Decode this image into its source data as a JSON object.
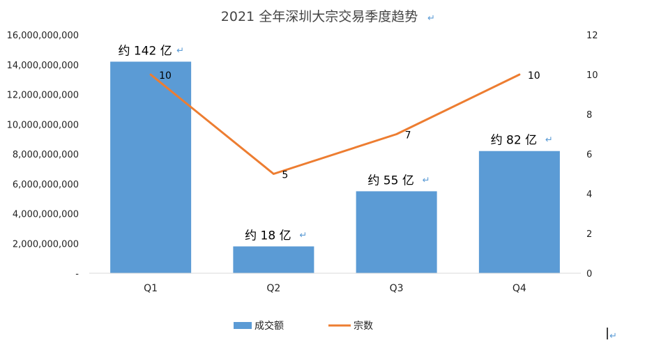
{
  "chart_data": {
    "type": "bar+line",
    "title": "2021 全年深圳大宗交易季度趋势",
    "categories": [
      "Q1",
      "Q2",
      "Q3",
      "Q4"
    ],
    "series": [
      {
        "name": "成交额",
        "type": "bar",
        "axis": "left",
        "color": "#5b9bd5",
        "values": [
          14200000000,
          1800000000,
          5500000000,
          8200000000
        ],
        "labels": [
          "约 142 亿",
          "约 18 亿",
          "约 55 亿",
          "约 82 亿"
        ]
      },
      {
        "name": "宗数",
        "type": "line",
        "axis": "right",
        "color": "#ed7d31",
        "values": [
          10,
          5,
          7,
          10
        ],
        "labels": [
          "10",
          "5",
          "7",
          "10"
        ]
      }
    ],
    "y_left": {
      "ylim": [
        0,
        16000000000
      ],
      "ticks": [
        0,
        2000000000,
        4000000000,
        6000000000,
        8000000000,
        10000000000,
        12000000000,
        14000000000,
        16000000000
      ],
      "tick_labels": [
        "-",
        "2,000,000,000",
        "4,000,000,000",
        "6,000,000,000",
        "8,000,000,000",
        "10,000,000,000",
        "12,000,000,000",
        "14,000,000,000",
        "16,000,000,000"
      ]
    },
    "y_right": {
      "ylim": [
        0,
        12
      ],
      "ticks": [
        0,
        2,
        4,
        6,
        8,
        10,
        12
      ],
      "tick_labels": [
        "0",
        "2",
        "4",
        "6",
        "8",
        "10",
        "12"
      ]
    },
    "grid": false,
    "legend_position": "bottom",
    "paragraph_mark": "↵"
  }
}
